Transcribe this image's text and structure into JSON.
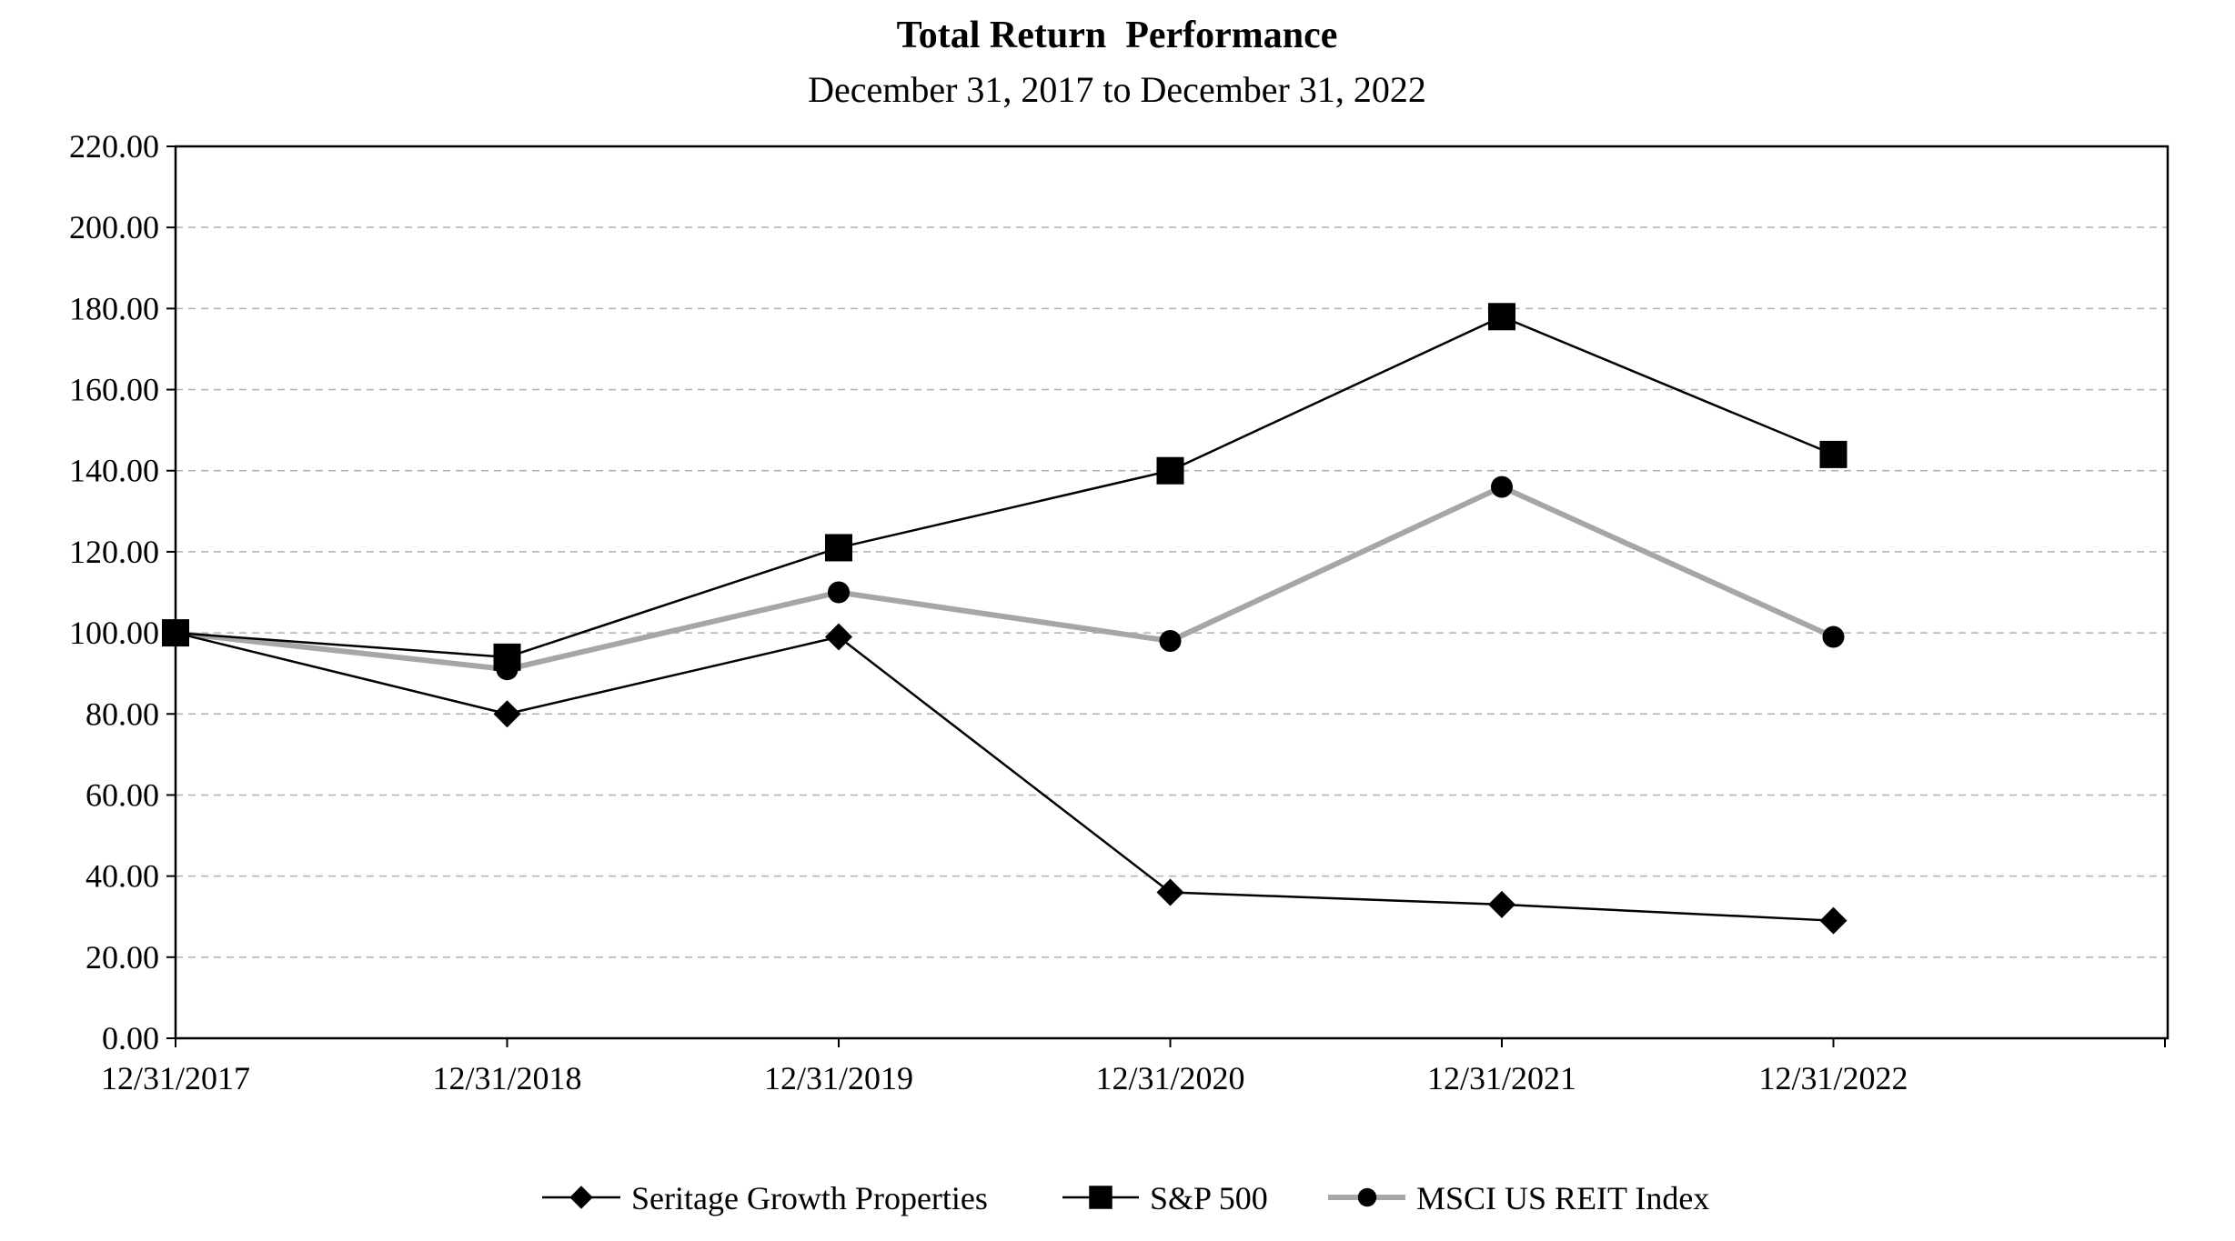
{
  "chart_data": {
    "type": "line",
    "title": "Total Return  Performance",
    "subtitle": "December 31, 2017 to December 31, 2022",
    "xlabel": "",
    "ylabel": "",
    "categories": [
      "12/31/2017",
      "12/31/2018",
      "12/31/2019",
      "12/31/2020",
      "12/31/2021",
      "12/31/2022"
    ],
    "ylim": [
      0,
      220
    ],
    "yticks": [
      "0.00",
      "20.00",
      "40.00",
      "60.00",
      "80.00",
      "100.00",
      "120.00",
      "140.00",
      "160.00",
      "180.00",
      "200.00",
      "220.00"
    ],
    "grid": "horizontal dashed",
    "legend_position": "bottom",
    "series": [
      {
        "name": "Seritage Growth Properties",
        "marker": "diamond",
        "color": "#000000",
        "values": [
          100,
          80,
          99,
          36,
          33,
          29
        ]
      },
      {
        "name": "S&P 500",
        "marker": "square",
        "color": "#000000",
        "values": [
          100,
          94,
          121,
          140,
          178,
          144
        ]
      },
      {
        "name": "MSCI US REIT Index",
        "marker": "circle",
        "color": "#a6a6a6",
        "values": [
          100,
          91,
          110,
          98,
          136,
          99
        ]
      }
    ]
  }
}
